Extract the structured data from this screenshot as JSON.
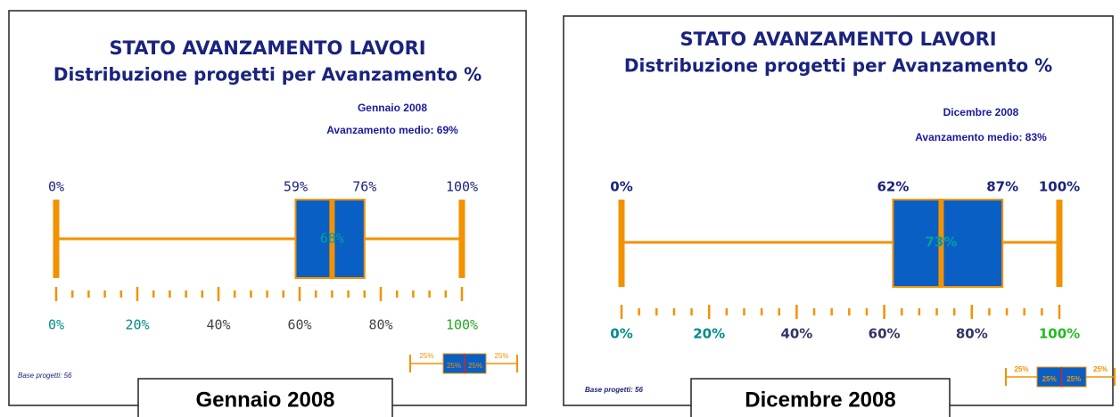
{
  "chart_data": [
    {
      "type": "box",
      "title": "STATO AVANZAMENTO LAVORI",
      "subtitle": "Distribuzione progetti per Avanzamento %",
      "date": "Gennaio 2008",
      "average_label": "Avanzamento medio: 69%",
      "base_label": "Base progetti: 56",
      "caption": "Gennaio 2008",
      "values": [
        0,
        59,
        68,
        76,
        100
      ],
      "value_labels": [
        "0%",
        "59%",
        "68%",
        "76%",
        "100%"
      ],
      "xlim": [
        0,
        100
      ],
      "xticks": [
        {
          "value": 0,
          "label": "0%"
        },
        {
          "value": 20,
          "label": "20%"
        },
        {
          "value": 40,
          "label": "40%"
        },
        {
          "value": 60,
          "label": "60%"
        },
        {
          "value": 80,
          "label": "80%"
        },
        {
          "value": 100,
          "label": "100%"
        }
      ],
      "xtick_colors": [
        "#008b8b",
        "#008b8b",
        "#444444",
        "#444444",
        "#444444",
        "#22aa22"
      ],
      "color": "#f39200",
      "box_color": "#0a5fc4",
      "median_label_color": "#00a0a0",
      "legend_labels": [
        "25%",
        "25%",
        "25%",
        "25%"
      ]
    },
    {
      "type": "box",
      "title": "STATO AVANZAMENTO LAVORI",
      "subtitle": "Distribuzione progetti per Avanzamento %",
      "date": "Dicembre 2008",
      "average_label": "Avanzamento medio: 83%",
      "base_label": "Base progetti: 56",
      "caption": "Dicembre 2008",
      "values": [
        0,
        62,
        73,
        87,
        100
      ],
      "value_labels": [
        "0%",
        "62%",
        "73%",
        "87%",
        "100%"
      ],
      "xlim": [
        0,
        100
      ],
      "xticks": [
        {
          "value": 0,
          "label": "0%"
        },
        {
          "value": 20,
          "label": "20%"
        },
        {
          "value": 40,
          "label": "40%"
        },
        {
          "value": 60,
          "label": "60%"
        },
        {
          "value": 80,
          "label": "80%"
        },
        {
          "value": 100,
          "label": "100%"
        }
      ],
      "xtick_colors": [
        "#008b8b",
        "#008b8b",
        "#333366",
        "#333366",
        "#333366",
        "#22bb22"
      ],
      "color": "#f39200",
      "box_color": "#0a5fc4",
      "median_label_color": "#00a0a0",
      "legend_labels": [
        "25%",
        "25%",
        "25%",
        "25%"
      ]
    }
  ]
}
